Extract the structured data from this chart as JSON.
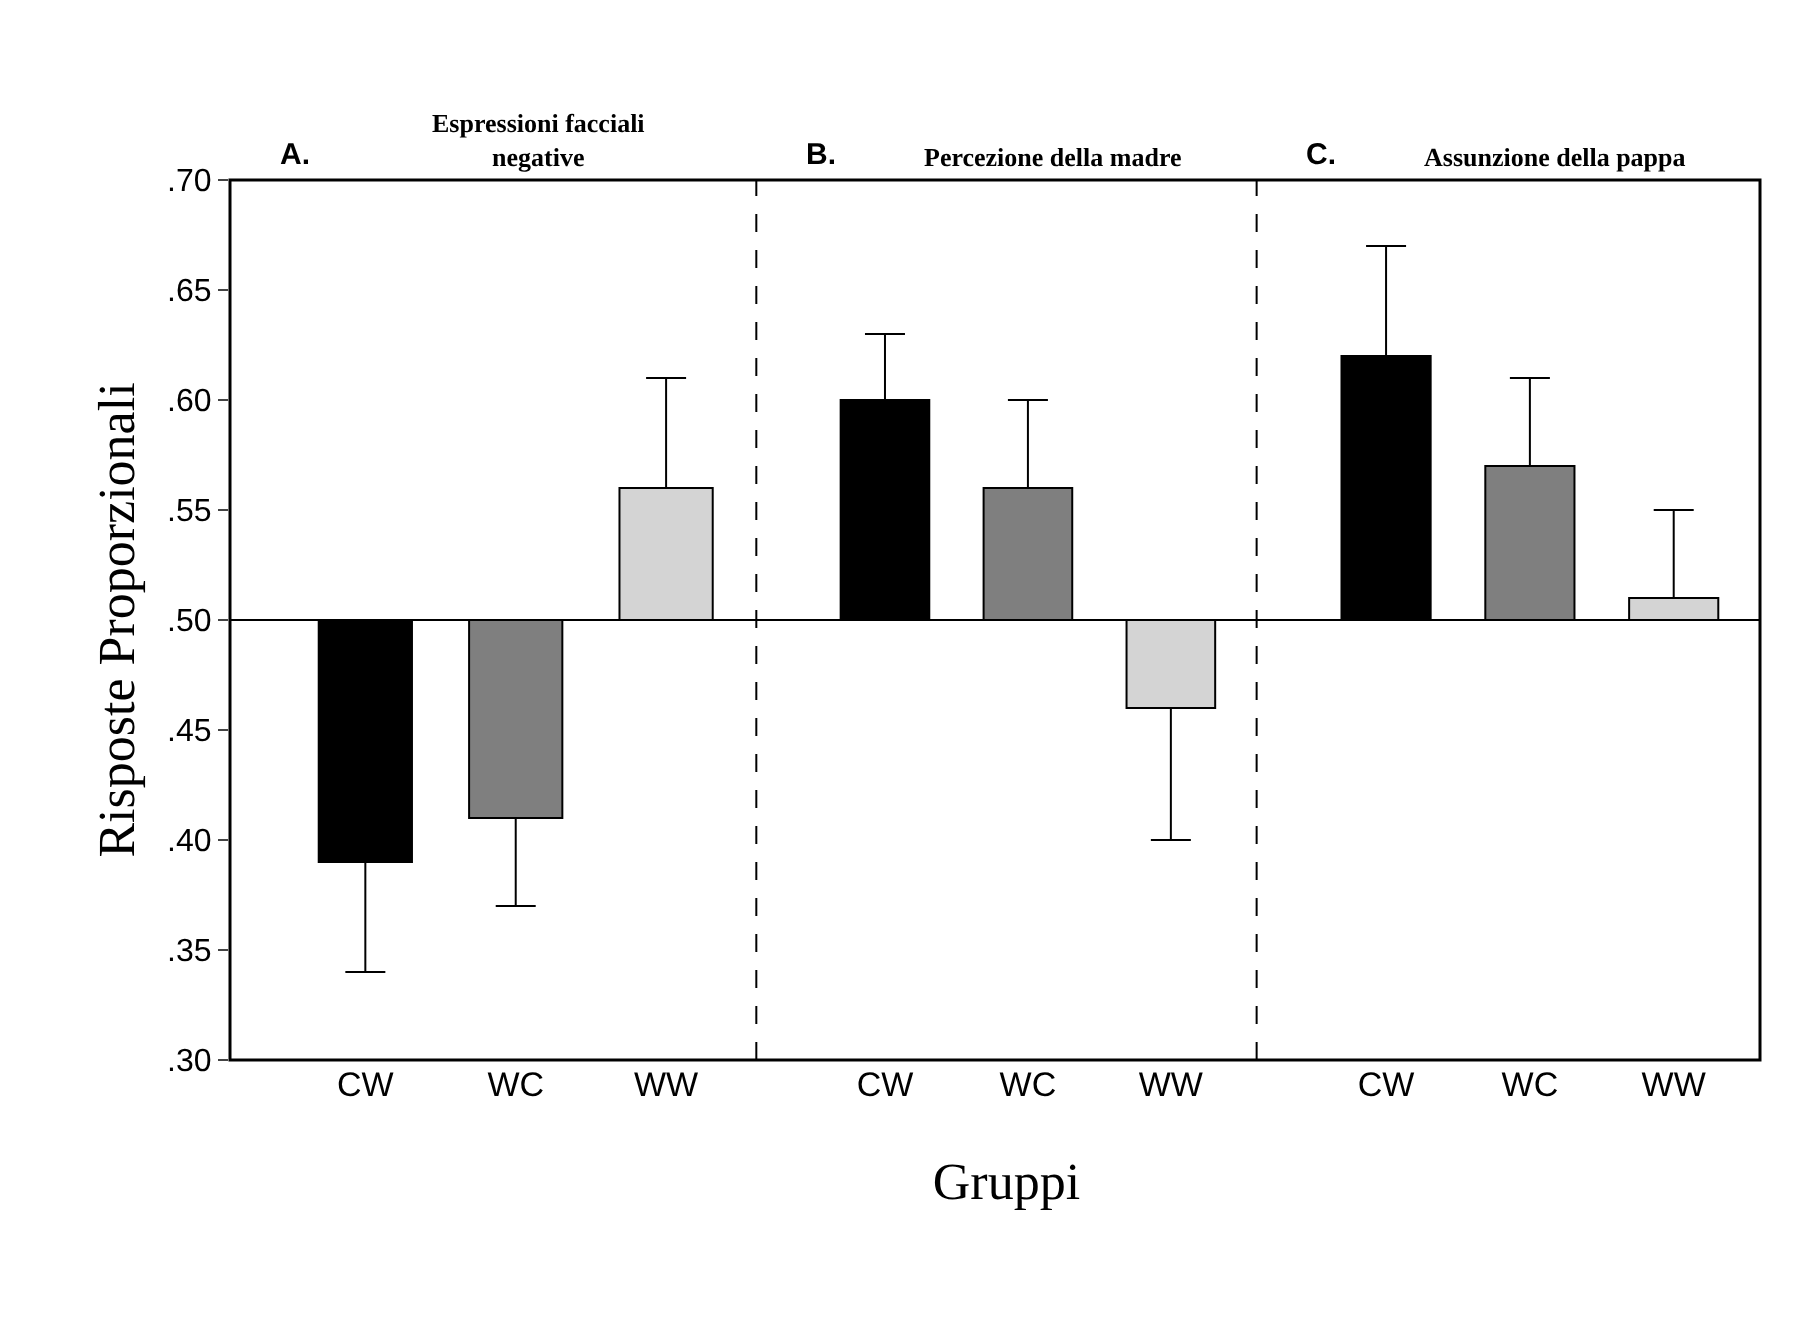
{
  "chart_data": [
    {
      "type": "bar",
      "title": "A. Espressioni facciali negative",
      "ylabel": "Risposte Proporzionali",
      "categories": [
        "CW",
        "WC",
        "WW"
      ],
      "base": [
        0.5,
        0.5,
        0.5
      ],
      "values": [
        -0.11,
        -0.09,
        0.06
      ],
      "colors": [
        "#000000",
        "#7f7f7f",
        "#d4d4d4"
      ],
      "errors": [
        [
          0.34,
          0.39
        ],
        [
          0.37,
          0.41
        ],
        [
          0.56,
          0.61
        ]
      ],
      "ylim": [
        0.3,
        0.7
      ],
      "yticks": [
        {
          "value": 0.3,
          "label": ".30"
        },
        {
          "value": 0.35,
          "label": ".35"
        },
        {
          "value": 0.4,
          "label": ".40"
        },
        {
          "value": 0.45,
          "label": ".45"
        },
        {
          "value": 0.5,
          "label": ".50"
        },
        {
          "value": 0.55,
          "label": ".55"
        },
        {
          "value": 0.6,
          "label": ".60"
        },
        {
          "value": 0.65,
          "label": ".65"
        },
        {
          "value": 0.7,
          "label": ".70"
        }
      ],
      "ref_lines": [
        {
          "axis": "y",
          "value": 0.5
        }
      ]
    },
    {
      "type": "bar",
      "title": "B. Percezione della madre",
      "xlabel": "Gruppi",
      "categories": [
        "CW",
        "WC",
        "WW"
      ],
      "base": [
        0.5,
        0.5,
        0.5
      ],
      "values": [
        0.1,
        0.06,
        -0.04
      ],
      "colors": [
        "#000000",
        "#7f7f7f",
        "#d4d4d4"
      ],
      "errors": [
        [
          0.6,
          0.63
        ],
        [
          0.56,
          0.6
        ],
        [
          0.4,
          0.46
        ]
      ],
      "ylim": [
        0.3,
        0.7
      ],
      "tick_labels": "x",
      "ref_lines": [
        {
          "axis": "y",
          "value": 0.5
        }
      ]
    },
    {
      "type": "bar",
      "title": "C. Assunzione della pappa",
      "categories": [
        "CW",
        "WC",
        "WW"
      ],
      "base": [
        0.5,
        0.5,
        0.5
      ],
      "values": [
        0.12,
        0.07,
        0.01
      ],
      "colors": [
        "#000000",
        "#7f7f7f",
        "#d4d4d4"
      ],
      "errors": [
        [
          0.62,
          0.67
        ],
        [
          0.57,
          0.61
        ],
        [
          0.51,
          0.55
        ]
      ],
      "ylim": [
        0.3,
        0.7
      ],
      "tick_labels": "x",
      "ref_lines": [
        {
          "axis": "y",
          "value": 0.5
        }
      ]
    }
  ]
}
